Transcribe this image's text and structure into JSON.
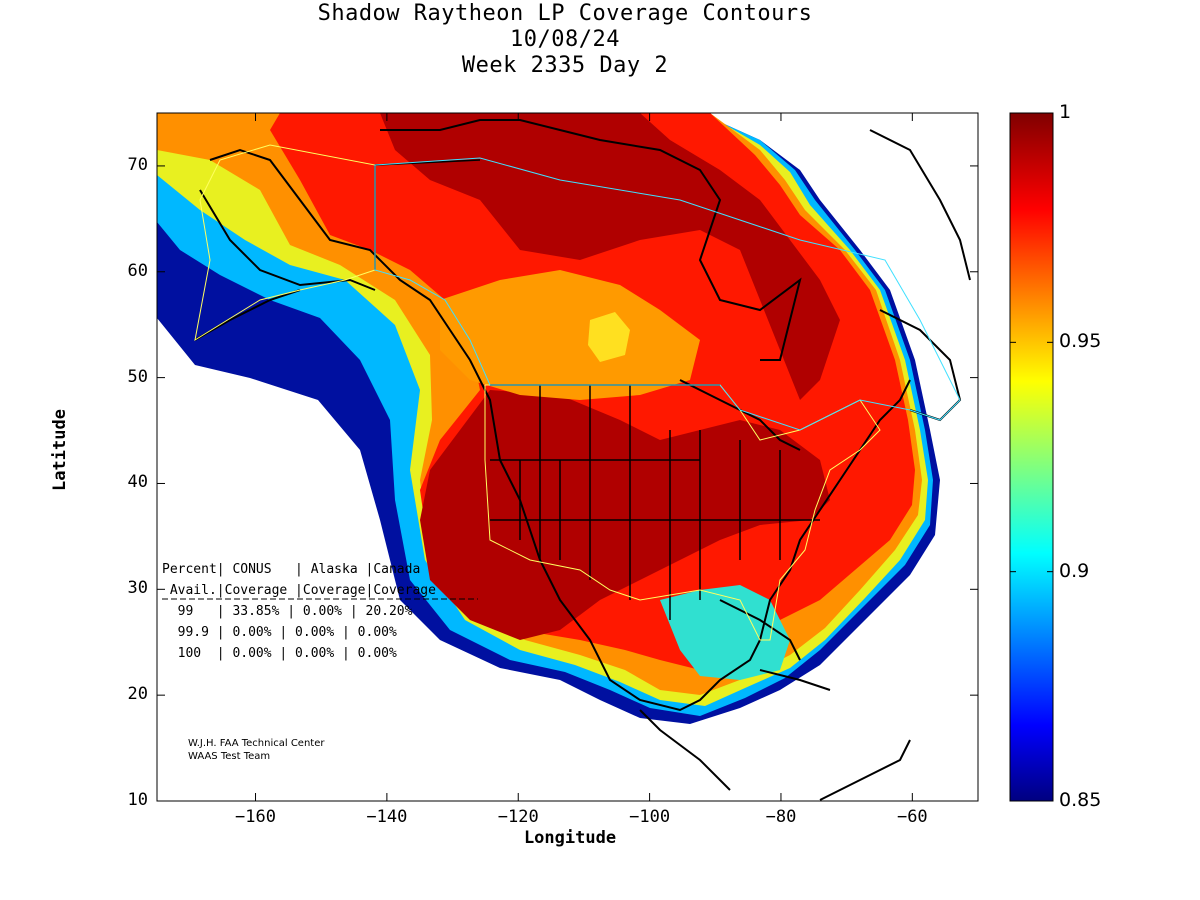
{
  "title": {
    "line1": "Shadow Raytheon LP Coverage Contours",
    "line2": "10/08/24",
    "line3": "Week 2335 Day 2"
  },
  "axes": {
    "xlabel": "Longitude",
    "ylabel": "Latitude",
    "xlim": [
      -175,
      -50
    ],
    "ylim": [
      10,
      75
    ],
    "xticks": [
      -160,
      -140,
      -120,
      -100,
      -80,
      -60
    ],
    "yticks": [
      10,
      20,
      30,
      40,
      50,
      60,
      70
    ]
  },
  "colorbar": {
    "min": 0.85,
    "max": 1,
    "ticks": [
      "1",
      "0.95",
      "0.9",
      "0.85"
    ],
    "tick_values": [
      1,
      0.95,
      0.9,
      0.85
    ],
    "colormap": "jet"
  },
  "stats_table": {
    "header1": "Percent| CONUS   | Alaska |Canada",
    "header2": " Avail.|Coverage |Coverage|Coverage",
    "rows": [
      "  99   | 33.85% | 0.00% | 20.20%",
      "  99.9 | 0.00% | 0.00% | 0.00%",
      "  100  | 0.00% | 0.00% | 0.00%"
    ]
  },
  "credit": {
    "line1": "W.J.H. FAA Technical Center",
    "line2": "WAAS Test Team"
  },
  "colors": {
    "dark_red": "#a80000",
    "red": "#ff1a00",
    "orange": "#ff8c00",
    "yellow": "#ffd800",
    "cyan": "#00e0ff",
    "blue": "#0040ff",
    "dark_blue": "#000090",
    "service_boundary_yellow": "#ffff60",
    "service_boundary_cyan": "#40e0ff"
  }
}
